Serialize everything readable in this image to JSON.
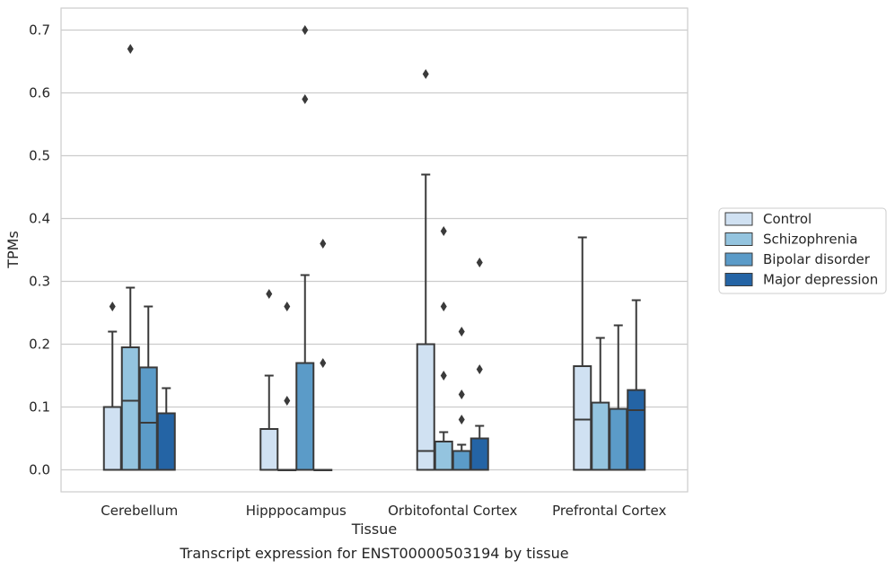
{
  "chart_data": {
    "type": "box",
    "xlabel": "Tissue",
    "ylabel": "TPMs",
    "caption": "Transcript expression for ENST00000503194 by tissue",
    "categories": [
      "Cerebellum",
      "Hipppocampus",
      "Orbitofontal Cortex",
      "Prefrontal Cortex"
    ],
    "ylim": [
      -0.035,
      0.735
    ],
    "yticks": [
      "0.0",
      "0.1",
      "0.2",
      "0.3",
      "0.4",
      "0.5",
      "0.6",
      "0.7"
    ],
    "grid": "horizontal",
    "legend_position": "right",
    "series": [
      {
        "name": "Control",
        "color": "#d0e1f2",
        "boxes": [
          {
            "min": 0.0,
            "q1": 0.0,
            "median": 0.0,
            "q3": 0.1,
            "max": 0.22,
            "outliers": [
              0.26
            ]
          },
          {
            "min": 0.0,
            "q1": 0.0,
            "median": 0.0,
            "q3": 0.065,
            "max": 0.15,
            "outliers": [
              0.28
            ]
          },
          {
            "min": 0.0,
            "q1": 0.0,
            "median": 0.03,
            "q3": 0.2,
            "max": 0.47,
            "outliers": [
              0.63
            ]
          },
          {
            "min": 0.0,
            "q1": 0.0,
            "median": 0.08,
            "q3": 0.165,
            "max": 0.37,
            "outliers": []
          }
        ]
      },
      {
        "name": "Schizophrenia",
        "color": "#94c4df",
        "boxes": [
          {
            "min": 0.0,
            "q1": 0.0,
            "median": 0.11,
            "q3": 0.195,
            "max": 0.29,
            "outliers": [
              0.67
            ]
          },
          {
            "min": 0.0,
            "q1": 0.0,
            "median": 0.0,
            "q3": 0.0,
            "max": 0.0,
            "outliers": [
              0.26,
              0.11
            ]
          },
          {
            "min": 0.0,
            "q1": 0.0,
            "median": 0.0,
            "q3": 0.045,
            "max": 0.06,
            "outliers": [
              0.38,
              0.26,
              0.15
            ]
          },
          {
            "min": 0.0,
            "q1": 0.0,
            "median": 0.0,
            "q3": 0.107,
            "max": 0.21,
            "outliers": []
          }
        ]
      },
      {
        "name": "Bipolar disorder",
        "color": "#5b9bc8",
        "boxes": [
          {
            "min": 0.0,
            "q1": 0.0,
            "median": 0.075,
            "q3": 0.163,
            "max": 0.26,
            "outliers": []
          },
          {
            "min": 0.0,
            "q1": 0.0,
            "median": 0.0,
            "q3": 0.17,
            "max": 0.31,
            "outliers": [
              0.7,
              0.59
            ]
          },
          {
            "min": 0.0,
            "q1": 0.0,
            "median": 0.0,
            "q3": 0.03,
            "max": 0.04,
            "outliers": [
              0.22,
              0.12,
              0.08
            ]
          },
          {
            "min": 0.0,
            "q1": 0.0,
            "median": 0.0,
            "q3": 0.097,
            "max": 0.23,
            "outliers": []
          }
        ]
      },
      {
        "name": "Major depression",
        "color": "#2464a5",
        "boxes": [
          {
            "min": 0.0,
            "q1": 0.0,
            "median": 0.0,
            "q3": 0.09,
            "max": 0.13,
            "outliers": []
          },
          {
            "min": 0.0,
            "q1": 0.0,
            "median": 0.0,
            "q3": 0.0,
            "max": 0.0,
            "outliers": [
              0.36,
              0.17
            ]
          },
          {
            "min": 0.0,
            "q1": 0.0,
            "median": 0.0,
            "q3": 0.05,
            "max": 0.07,
            "outliers": [
              0.33,
              0.16
            ]
          },
          {
            "min": 0.0,
            "q1": 0.0,
            "median": 0.095,
            "q3": 0.127,
            "max": 0.27,
            "outliers": []
          }
        ]
      }
    ]
  }
}
